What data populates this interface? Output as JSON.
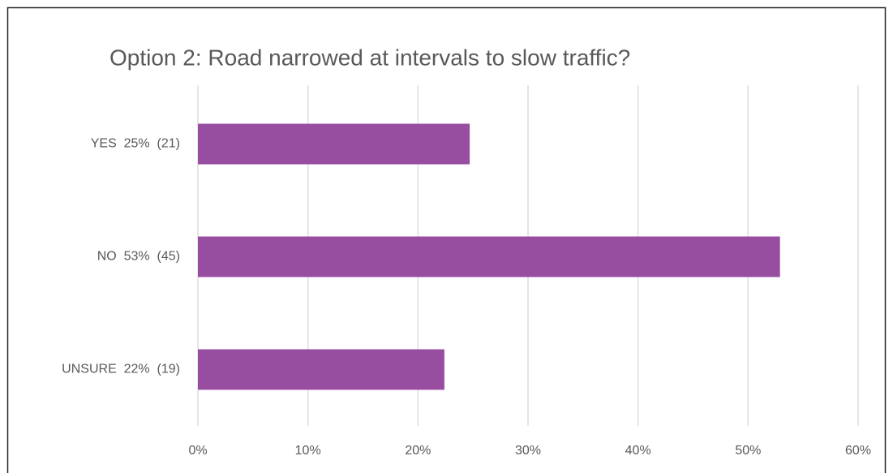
{
  "chart_data": {
    "type": "hbar",
    "title": "Option 2:  Road narrowed at intervals to slow traffic?",
    "categories": [
      "YES  25%  (21)",
      "NO  53%  (45)",
      "UNSURE  22%  (19)"
    ],
    "values": [
      24.7,
      52.9,
      22.4
    ],
    "color": "#984ea0",
    "xlim": [
      0,
      60
    ],
    "xticks": [
      {
        "value": 0,
        "label": "0%"
      },
      {
        "value": 10,
        "label": "10%"
      },
      {
        "value": 20,
        "label": "20%"
      },
      {
        "value": 30,
        "label": "30%"
      },
      {
        "value": 40,
        "label": "40%"
      },
      {
        "value": 50,
        "label": "50%"
      },
      {
        "value": 60,
        "label": "60%"
      }
    ],
    "grid": true
  }
}
